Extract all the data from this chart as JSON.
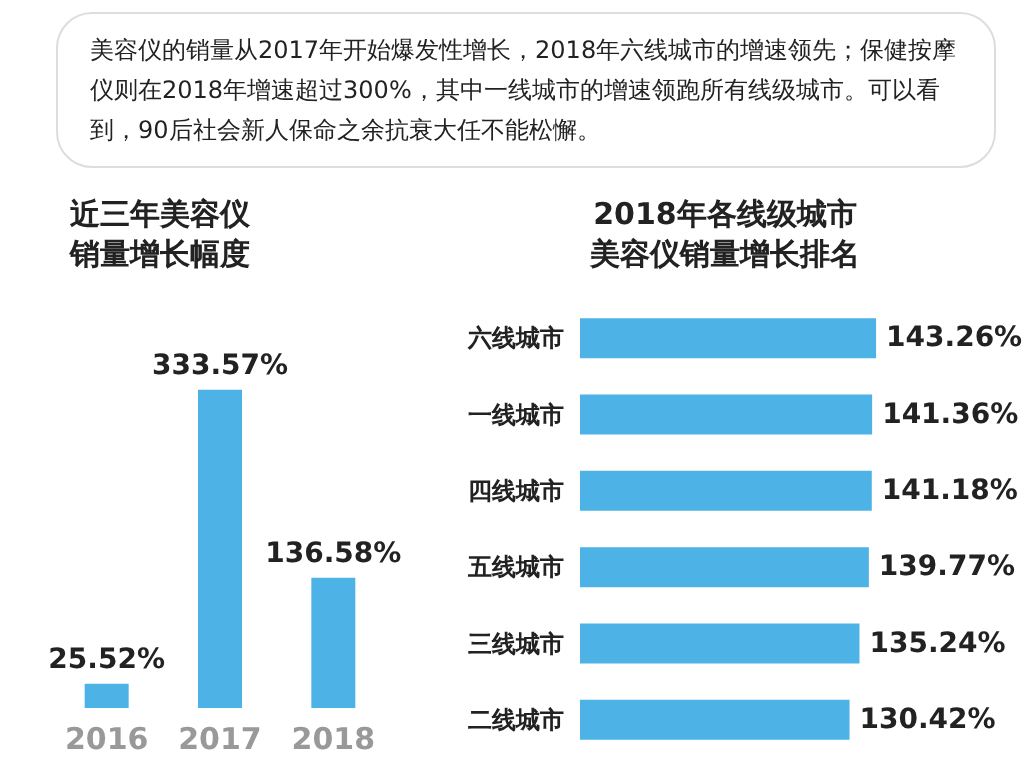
{
  "chart_data": [
    {
      "type": "other",
      "annotations": [
        "美容仪的销量从2017年开始爆发性增长，2018年六线城市的增速领先；保健按摩仪则在2018年增速超过300%，其中一线城市的增速领跑所有线级城市。可以看到，90后社会新人保命之余抗衰大任不能松懈。"
      ]
    },
    {
      "type": "bar",
      "title": "近三年美容仪销量增长幅度",
      "categories": [
        "2016",
        "2017",
        "2018"
      ],
      "values": [
        25.52,
        333.57,
        136.58
      ],
      "value_labels": [
        "25.52%",
        "333.57%",
        "136.58%"
      ],
      "color": "#4db3e6"
    },
    {
      "type": "bar",
      "orientation": "horizontal",
      "title": "2018年各线级城市美容仪销量增长排名",
      "categories": [
        "六线城市",
        "一线城市",
        "四线城市",
        "五线城市",
        "三线城市",
        "二线城市"
      ],
      "values": [
        143.26,
        141.36,
        141.18,
        139.77,
        135.24,
        130.42
      ],
      "value_labels": [
        "143.26%",
        "141.36%",
        "141.18%",
        "139.77%",
        "135.24%",
        "130.42%"
      ],
      "color": "#4db3e6"
    }
  ]
}
